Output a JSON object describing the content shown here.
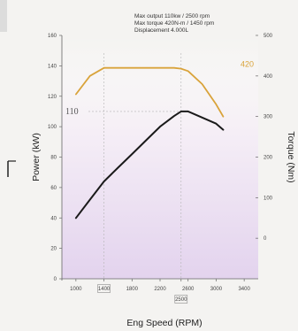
{
  "spec": {
    "max_output": "Max  output  110kw / 2500 rpm",
    "max_torque": "Max  torque  420N-m / 1450 rpm",
    "displacement": "Displacement  4.000L"
  },
  "chart_data": {
    "type": "line",
    "xlabel": "Eng  Speed (RPM)",
    "ylabel_left": "Power (kW)",
    "ylabel_right": "Torque (Nm)",
    "xlim": [
      800,
      3600
    ],
    "ylim_left": [
      0,
      160
    ],
    "ylim_right": [
      -100,
      500
    ],
    "x_ticks": [
      "1000",
      "1400",
      "1800",
      "2200",
      "2500",
      "2600",
      "3000",
      "3400"
    ],
    "y_left_ticks": [
      "0",
      "20",
      "40",
      "60",
      "80",
      "100",
      "120",
      "140",
      "160"
    ],
    "y_right_ticks": [
      "0",
      "100",
      "200",
      "300",
      "400",
      "500"
    ],
    "series": [
      {
        "axis": "left",
        "color": "#1a1a1a",
        "x": [
          1000,
          1200,
          1400,
          1600,
          1800,
          2000,
          2200,
          2400,
          2500,
          2600,
          2800,
          3000,
          3100
        ],
        "y": [
          40,
          52,
          64,
          73,
          82,
          91,
          100,
          107,
          110,
          110,
          106,
          102,
          98
        ]
      },
      {
        "axis": "right",
        "color": "#d9a33a",
        "x": [
          1000,
          1200,
          1400,
          1600,
          1800,
          2000,
          2200,
          2400,
          2500,
          2600,
          2800,
          3000,
          3100
        ],
        "y": [
          355,
          400,
          420,
          420,
          420,
          420,
          420,
          420,
          418,
          412,
          380,
          330,
          300
        ]
      }
    ],
    "annotations": {
      "peak_power_label": "110",
      "peak_torque_label": "420",
      "peak_power_rpm_label": "2500",
      "peak_torque_rpm_label": "1400",
      "peak_power_rpm": 2500,
      "peak_torque_rpm": 1400
    }
  }
}
